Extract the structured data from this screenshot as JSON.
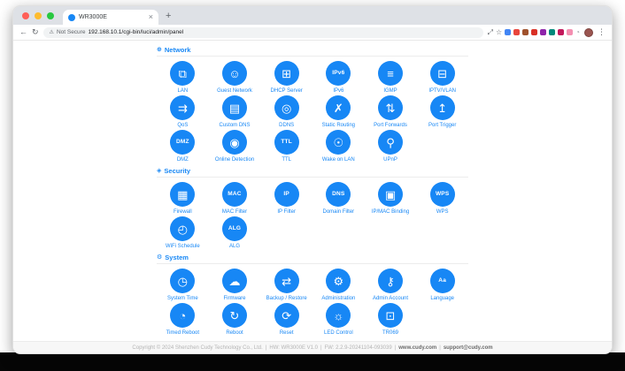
{
  "theme": {
    "accent": "#1787f5",
    "tabstrip_bg": "#dee1e6",
    "footer_bg": "#f7f7f7"
  },
  "browser": {
    "traffic_lights": [
      "#ff5f57",
      "#febc2e",
      "#28c840"
    ],
    "tab": {
      "title": "WR3000E",
      "close_glyph": "×",
      "favicon_color": "#1787f5"
    },
    "new_tab_glyph": "+",
    "nav": {
      "back_glyph": "←",
      "reload_glyph": "↻"
    },
    "address": {
      "warning_glyph": "⚠",
      "security_label": "Not Secure",
      "url": "192.168.10.1/cgi-bin/luci/admin/panel"
    },
    "extensions": [
      {
        "name": "sidebar-icon",
        "glyph": "⤢",
        "color": "#5f6368"
      },
      {
        "name": "bookmark-star-icon",
        "glyph": "☆",
        "color": "#5f6368"
      },
      {
        "name": "extension-blue-icon",
        "glyph": "",
        "color": "#4285f4"
      },
      {
        "name": "extension-red-circle-icon",
        "glyph": "",
        "color": "#e8453c"
      },
      {
        "name": "extension-brown-icon",
        "glyph": "",
        "color": "#a0522d"
      },
      {
        "name": "extension-orange-icon",
        "glyph": "",
        "color": "#d93025"
      },
      {
        "name": "extension-purple-icon",
        "glyph": "",
        "color": "#8e24aa"
      },
      {
        "name": "extension-teal-icon",
        "glyph": "",
        "color": "#00897b"
      },
      {
        "name": "extension-crimson-icon",
        "glyph": "",
        "color": "#c2185b"
      },
      {
        "name": "extension-pink-icon",
        "glyph": "",
        "color": "#f48fb1"
      },
      {
        "name": "history-clock-icon",
        "glyph": "◔",
        "color": "#9aa0a6"
      }
    ],
    "profile_menu_glyph": "⋮"
  },
  "sections": [
    {
      "id": "network",
      "title": "Network",
      "icon": "globe-icon",
      "icon_glyph": "⊕",
      "items": [
        {
          "label": "LAN",
          "glyph": "⧉"
        },
        {
          "label": "Guest Network",
          "glyph": "☺"
        },
        {
          "label": "DHCP Server",
          "glyph": "⊞"
        },
        {
          "label": "IPv6",
          "glyph": "IPv6"
        },
        {
          "label": "IGMP",
          "glyph": "≡"
        },
        {
          "label": "IPTV/VLAN",
          "glyph": "⊟"
        },
        {
          "label": "QoS",
          "glyph": "⇉"
        },
        {
          "label": "Custom DNS",
          "glyph": "▤"
        },
        {
          "label": "DDNS",
          "glyph": "◎"
        },
        {
          "label": "Static Routing",
          "glyph": "✗"
        },
        {
          "label": "Port Forwards",
          "glyph": "⇅"
        },
        {
          "label": "Port Trigger",
          "glyph": "↥"
        },
        {
          "label": "DMZ",
          "glyph": "DMZ"
        },
        {
          "label": "Online Detection",
          "glyph": "◉"
        },
        {
          "label": "TTL",
          "glyph": "TTL"
        },
        {
          "label": "Wake on LAN",
          "glyph": "☉"
        },
        {
          "label": "UPnP",
          "glyph": "⚲"
        }
      ]
    },
    {
      "id": "security",
      "title": "Security",
      "icon": "shield-icon",
      "icon_glyph": "◈",
      "items": [
        {
          "label": "Firewall",
          "glyph": "▦"
        },
        {
          "label": "MAC Filter",
          "glyph": "MAC"
        },
        {
          "label": "IP Filter",
          "glyph": "IP"
        },
        {
          "label": "Domain Filter",
          "glyph": "DNS"
        },
        {
          "label": "IP/MAC Binding",
          "glyph": "▣"
        },
        {
          "label": "WPS",
          "glyph": "WPS"
        },
        {
          "label": "WiFi Schedule",
          "glyph": "◴"
        },
        {
          "label": "ALG",
          "glyph": "ALG"
        }
      ]
    },
    {
      "id": "system",
      "title": "System",
      "icon": "gear-icon",
      "icon_glyph": "⚙",
      "items": [
        {
          "label": "System Time",
          "glyph": "◷"
        },
        {
          "label": "Firmware",
          "glyph": "☁"
        },
        {
          "label": "Backup / Restore",
          "glyph": "⇄"
        },
        {
          "label": "Administration",
          "glyph": "⚙"
        },
        {
          "label": "Admin Account",
          "glyph": "⚷"
        },
        {
          "label": "Language",
          "glyph": "Aa"
        },
        {
          "label": "Timed Reboot",
          "glyph": "◔"
        },
        {
          "label": "Reboot",
          "glyph": "↻"
        },
        {
          "label": "Reset",
          "glyph": "⟳"
        },
        {
          "label": "LED Control",
          "glyph": "☼"
        },
        {
          "label": "TR069",
          "glyph": "⊡"
        }
      ]
    }
  ],
  "footer": {
    "copyright": "Copyright © 2024 Shenzhen Cudy Technology Co., Ltd.",
    "hw": "HW: WR3000E V1.0",
    "fw": "FW: 2.2.9-20241104-093039",
    "site_link": "www.cudy.com",
    "support_link": "support@cudy.com",
    "sep": "|"
  }
}
